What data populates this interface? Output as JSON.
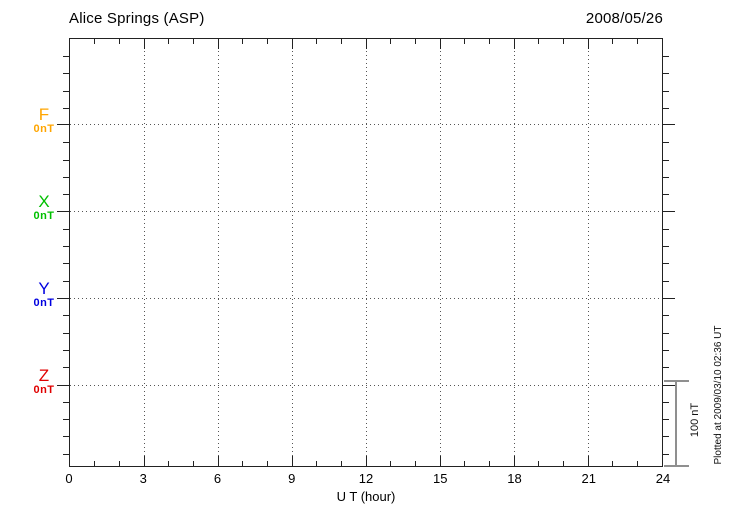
{
  "header": {
    "station_title": "Alice Springs (ASP)",
    "date": "2008/05/26"
  },
  "chart_data": {
    "type": "line",
    "title": "Alice Springs (ASP)",
    "date": "2008/05/26",
    "xlabel": "U T (hour)",
    "x_ticks": [
      "0",
      "3",
      "6",
      "9",
      "12",
      "15",
      "18",
      "21",
      "24"
    ],
    "x_range_hours": [
      0,
      24
    ],
    "grid": {
      "vertical_dotted_every_hours": 3,
      "horizontal_dotted_at": "zero baseline of each component",
      "minor_tick_hours": 1,
      "minor_tick_nT": 20
    },
    "series": [
      {
        "name": "F",
        "zero_label": "0nT",
        "color": "#ffa500",
        "values": []
      },
      {
        "name": "X",
        "zero_label": "0nT",
        "color": "#00c000",
        "values": []
      },
      {
        "name": "Y",
        "zero_label": "0nT",
        "color": "#0000e0",
        "values": []
      },
      {
        "name": "Z",
        "zero_label": "0nT",
        "color": "#e00000",
        "values": []
      }
    ],
    "scale_bar": {
      "label": "100 nT",
      "span_nT": 100
    }
  },
  "footer": {
    "plotted_at": "Plotted at 2009/03/10 02:36 UT"
  }
}
